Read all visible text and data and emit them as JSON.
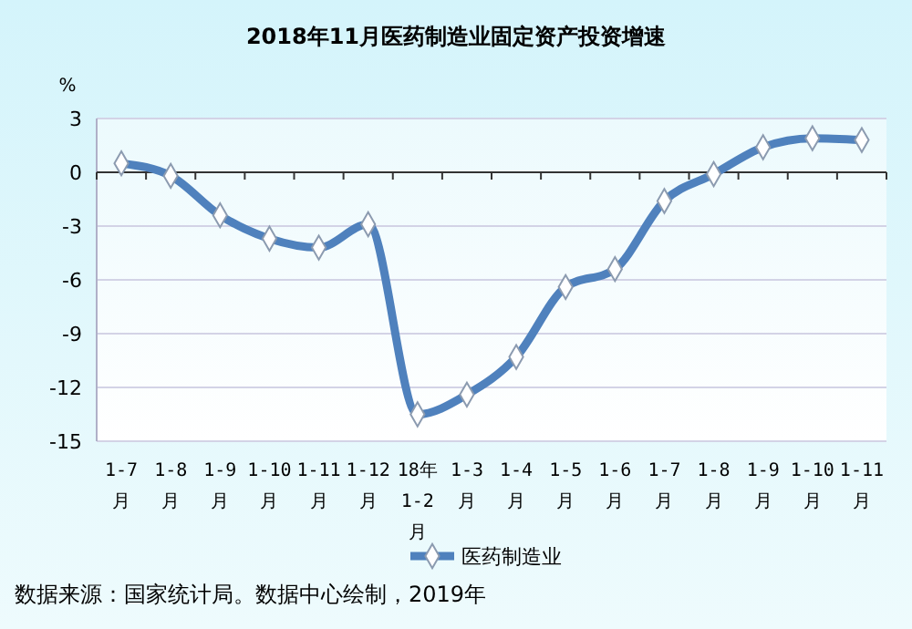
{
  "chart_data": {
    "type": "line",
    "title": "2018年11月医药制造业固定资产投资增速",
    "ylabel": "%",
    "categories": [
      "1-7\n月",
      "1-8\n月",
      "1-9\n月",
      "1-10\n月",
      "1-11\n月",
      "1-12\n月",
      "18年\n1-2\n月",
      "1-3\n月",
      "1-4\n月",
      "1-5\n月",
      "1-6\n月",
      "1-7\n月",
      "1-8\n月",
      "1-9\n月",
      "1-10\n月",
      "1-11\n月"
    ],
    "series": [
      {
        "name": "医药制造业",
        "color": "#4f81bd",
        "values": [
          0.5,
          -0.2,
          -2.4,
          -3.7,
          -4.2,
          -2.9,
          -13.5,
          -12.4,
          -10.3,
          -6.4,
          -5.4,
          -1.6,
          -0.1,
          1.4,
          1.9,
          1.8
        ]
      }
    ],
    "ylim": [
      -15,
      3
    ],
    "yticks": [
      3,
      0,
      -3,
      -6,
      -9,
      -12,
      -15
    ],
    "grid": "y",
    "legend": "bottom",
    "marker": "diamond",
    "line_style": "solid",
    "annotations": [
      "数据来源：国家统计局。数据中心绘制，2019年"
    ]
  }
}
